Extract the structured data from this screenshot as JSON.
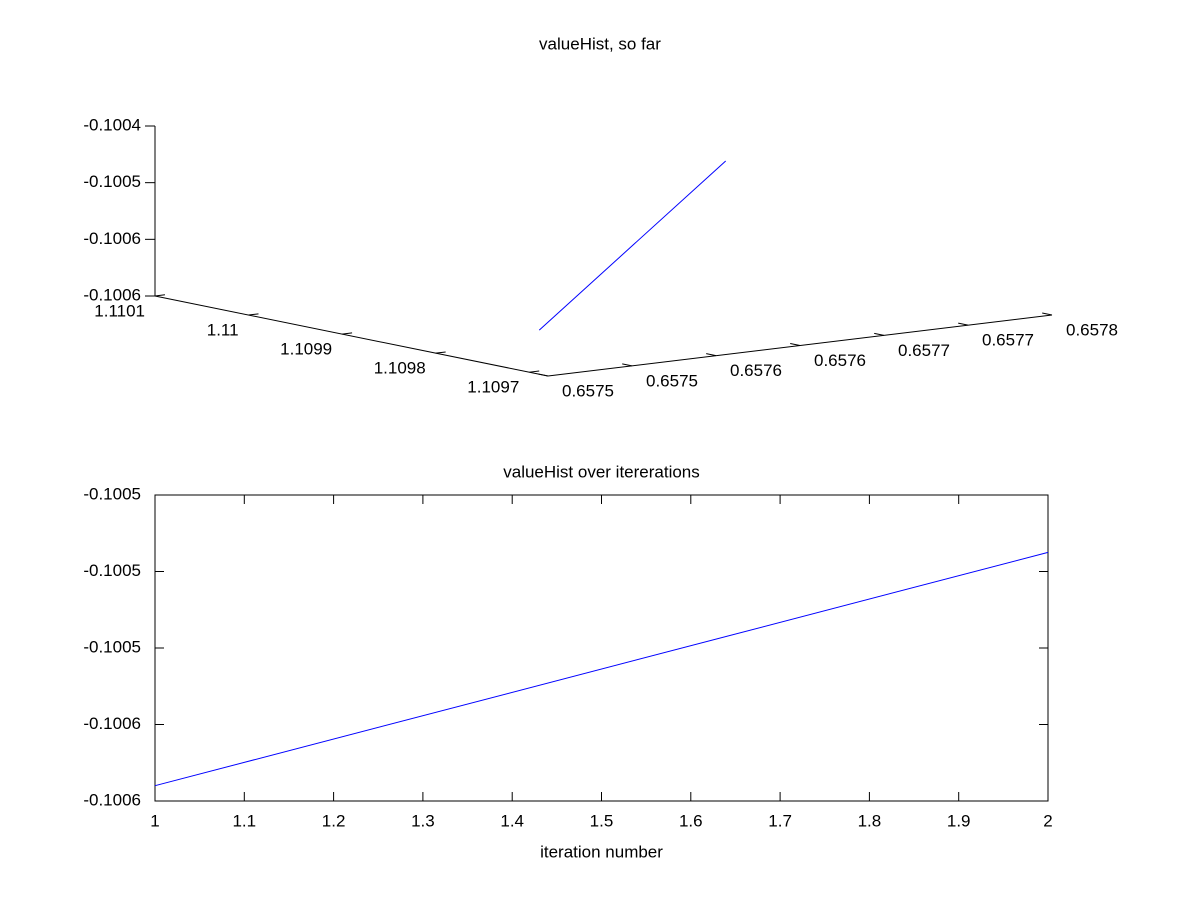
{
  "chart_data": [
    {
      "type": "line3d",
      "title": "valueHist, so far",
      "x": [
        1.109745,
        1.11
      ],
      "y": [
        0.657531,
        0.657784
      ],
      "z": [
        -0.100576,
        -0.100515
      ],
      "color": "#0000ff",
      "xlim": [
        1.10968,
        1.1101
      ],
      "xticks": [
        1.1097,
        1.1098,
        1.1099,
        1.11,
        1.1101
      ],
      "ylim": [
        0.6575,
        0.6578
      ],
      "yticks": [
        0.6575,
        {
          "value": 0.65755,
          "label": "0.6575"
        },
        0.6576,
        {
          "value": 0.65765,
          "label": "0.6576"
        },
        0.6577,
        {
          "value": 0.65775,
          "label": "0.6577"
        },
        0.6578
      ],
      "zlim": [
        -0.1006,
        -0.10045
      ],
      "zticks": [
        -0.1006,
        {
          "value": -0.10055,
          "label": "-0.1006"
        },
        -0.1005,
        {
          "value": -0.10045,
          "label": "-0.1004"
        }
      ]
    },
    {
      "type": "line",
      "title": "valueHist over itererations",
      "x_label": "iteration number",
      "x": [
        1,
        2
      ],
      "values": [
        -0.100576,
        -0.100515
      ],
      "color": "#0000ff",
      "xlim": [
        1,
        2
      ],
      "xticks": [
        1,
        1.1,
        1.2,
        1.3,
        1.4,
        1.5,
        1.6,
        1.7,
        1.8,
        1.9,
        2
      ],
      "ylim": [
        -0.10058,
        -0.1005
      ],
      "yticks": [
        {
          "value": -0.10058,
          "label": "-0.1006"
        },
        {
          "value": -0.10056,
          "label": "-0.1006"
        },
        {
          "value": -0.10054,
          "label": "-0.1005"
        },
        {
          "value": -0.10052,
          "label": "-0.1005"
        },
        -0.1005
      ]
    }
  ]
}
